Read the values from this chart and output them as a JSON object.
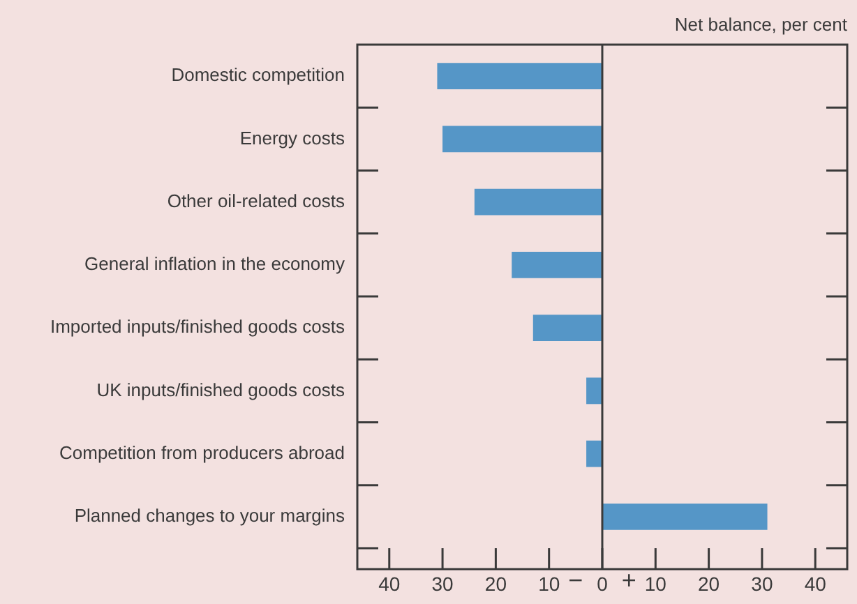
{
  "chart_data": {
    "type": "bar",
    "orientation": "horizontal",
    "xlabel": "Net balance, per cent",
    "categories": [
      "Domestic competition",
      "Energy costs",
      "Other oil-related costs",
      "General inflation in the economy",
      "Imported inputs/finished goods costs",
      "UK inputs/finished goods costs",
      "Competition from producers abroad",
      "Planned changes to your margins"
    ],
    "values": [
      -31,
      -30,
      -24,
      -17,
      -13,
      -3,
      -3,
      31
    ],
    "color": "#5596c7",
    "xlim": [
      -46,
      46
    ],
    "xticks": [
      {
        "value": -40,
        "label": "40"
      },
      {
        "value": -30,
        "label": "30"
      },
      {
        "value": -20,
        "label": "20"
      },
      {
        "value": -10,
        "label": "10"
      },
      0,
      10,
      20,
      30,
      40
    ],
    "annotations": [
      "−",
      "+"
    ],
    "legend": false
  }
}
